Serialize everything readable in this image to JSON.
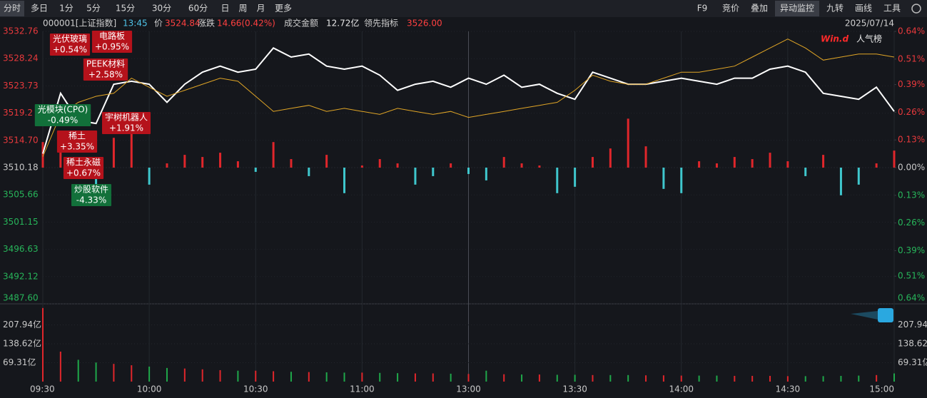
{
  "toolbar": {
    "left": [
      {
        "label": "分时",
        "active": true
      },
      {
        "label": "多日"
      },
      {
        "label": "1分"
      },
      {
        "label": "5分"
      },
      {
        "label": "15分"
      },
      {
        "label": "30分"
      },
      {
        "label": "60分"
      },
      {
        "label": "日"
      },
      {
        "label": "周"
      },
      {
        "label": "月"
      },
      {
        "label": "更多"
      }
    ],
    "right": [
      {
        "label": "F9"
      },
      {
        "label": "竞价"
      },
      {
        "label": "叠加"
      },
      {
        "label": "异动监控",
        "active": true
      },
      {
        "label": "九转"
      },
      {
        "label": "画线"
      },
      {
        "label": "工具"
      }
    ]
  },
  "header": {
    "code": "000001[上证指数]",
    "time": "13:45",
    "price": "3524.84",
    "change_label": "涨跌",
    "change": "14.66(0.42%)",
    "amount_label": "成交金额",
    "amount": "12.72亿",
    "lead": "3526.00",
    "date": "2025/07/14"
  },
  "chart_data": {
    "type": "line",
    "x": [
      0,
      5,
      10,
      15,
      20,
      25,
      30,
      35,
      40,
      45,
      50,
      55,
      60,
      65,
      70,
      75,
      80,
      85,
      90,
      95,
      100,
      105,
      110,
      115,
      120,
      125,
      130,
      135,
      140,
      145,
      150,
      155,
      160,
      165,
      170,
      175,
      180,
      185,
      190,
      195,
      200,
      205,
      210,
      215,
      220,
      225,
      230,
      235,
      240
    ],
    "xlim": [
      0,
      240
    ],
    "xticks": [
      {
        "value": 0,
        "label": "09:30"
      },
      {
        "value": 30,
        "label": "10:00"
      },
      {
        "value": 60,
        "label": "10:30"
      },
      {
        "value": 90,
        "label": "11:00"
      },
      {
        "value": 120,
        "label": "13:00"
      },
      {
        "value": 150,
        "label": "13:30"
      },
      {
        "value": 180,
        "label": "14:00"
      },
      {
        "value": 210,
        "label": "14:30"
      },
      {
        "value": 240,
        "label": "15:00"
      }
    ],
    "ylim": [
      3487.6,
      3532.76
    ],
    "yticks": [
      3532.76,
      3528.24,
      3523.73,
      3519.2,
      {
        "value": 3514.7,
        "label": "3514.70"
      },
      3510.18,
      3505.66,
      3501.15,
      3496.63,
      3492.12,
      {
        "value": 3487.6,
        "label": "3487.60"
      }
    ],
    "y2lim": [
      -0.64,
      0.64
    ],
    "y2ticks": [
      {
        "value": 0.64,
        "label": "0.64%"
      },
      {
        "value": 0.51,
        "label": "0.51%"
      },
      {
        "value": 0.39,
        "label": "0.39%"
      },
      {
        "value": 0.26,
        "label": "0.26%"
      },
      {
        "value": 0.13,
        "label": "0.13%"
      },
      {
        "value": 0,
        "label": "0.00%"
      },
      {
        "value": -0.13,
        "label": "0.13%"
      },
      {
        "value": -0.26,
        "label": "0.26%"
      },
      {
        "value": -0.39,
        "label": "0.39%"
      },
      {
        "value": -0.51,
        "label": "0.51%"
      },
      {
        "value": -0.64,
        "label": "0.64%"
      }
    ],
    "series": [
      {
        "name": "价",
        "color": "#ffffff",
        "values": [
          3512.5,
          3522.5,
          3518,
          3517.5,
          3524,
          3524.5,
          3524,
          3521,
          3524,
          3526,
          3527,
          3526,
          3526.5,
          3530,
          3528.5,
          3529,
          3527,
          3526.5,
          3527,
          3525.5,
          3523,
          3524,
          3524.5,
          3523.5,
          3525,
          3524,
          3525.5,
          3523.5,
          3524,
          3522.5,
          3521.5,
          3526,
          3525,
          3524,
          3524,
          3524.5,
          3525,
          3524.5,
          3524,
          3525,
          3525,
          3526.5,
          3527,
          3526,
          3522.5,
          3522,
          3521.5,
          3523.5,
          3519.5
        ]
      },
      {
        "name": "领先指标",
        "color": "#e0a526",
        "values": [
          3512,
          3519,
          3521,
          3522,
          3522.5,
          3525,
          3523.5,
          3522,
          3523,
          3524,
          3525,
          3524.5,
          3522,
          3519.5,
          3520,
          3520.5,
          3519.5,
          3520,
          3519.5,
          3519,
          3520,
          3519.5,
          3519,
          3519.5,
          3518.5,
          3519,
          3519.5,
          3520,
          3520.5,
          3521,
          3523,
          3525.5,
          3524.5,
          3524,
          3524,
          3525,
          3526,
          3526,
          3526.5,
          3527,
          3528.5,
          3530,
          3531.5,
          3530,
          3528,
          3528.5,
          3529,
          3529,
          3528.5
        ]
      }
    ],
    "bars": {
      "axis": "y2",
      "up_color": "#e0262b",
      "down_color": "#3fc7cd",
      "values": [
        0.12,
        0.08,
        -0.05,
        -0.18,
        0.14,
        0.18,
        -0.08,
        0.02,
        0.06,
        0.05,
        0.07,
        0.03,
        -0.02,
        0.12,
        0.04,
        -0.04,
        0.06,
        -0.12,
        0.01,
        0.04,
        0.02,
        -0.08,
        -0.04,
        0.02,
        -0.03,
        -0.06,
        0.05,
        0.02,
        0.01,
        -0.12,
        -0.09,
        0.05,
        0.09,
        0.23,
        0.1,
        -0.1,
        -0.12,
        0.03,
        0.02,
        0.05,
        0.04,
        0.07,
        0.03,
        -0.04,
        0.06,
        -0.13,
        -0.08,
        0.02,
        0.08
      ]
    },
    "volume": {
      "ylim": [
        0,
        280
      ],
      "yticks": [
        {
          "value": 207.94,
          "label": "207.94亿"
        },
        {
          "value": 138.62,
          "label": "138.62亿"
        },
        {
          "value": 69.31,
          "label": "69.31亿"
        }
      ],
      "up_color": "#e0262b",
      "down_color": "#1fa84a",
      "values": [
        270,
        110,
        80,
        70,
        65,
        60,
        55,
        50,
        48,
        45,
        42,
        40,
        40,
        38,
        36,
        35,
        34,
        33,
        33,
        32,
        31,
        30,
        30,
        29,
        28,
        40,
        27,
        26,
        26,
        25,
        25,
        24,
        24,
        24,
        23,
        23,
        22,
        22,
        22,
        21,
        21,
        21,
        20,
        20,
        20,
        21,
        22,
        24,
        30
      ]
    },
    "annotation_colors": {
      "up": "#b5121b",
      "down": "#12703a"
    },
    "annotations": [
      {
        "name": "光伏玻璃",
        "value": 0.54,
        "label": "+0.54%"
      },
      {
        "name": "电路板",
        "value": 0.95,
        "label": "+0.95%"
      },
      {
        "name": "PEEK材料",
        "value": 2.58,
        "label": "+2.58%"
      },
      {
        "name": "宇树机器人",
        "value": 1.91,
        "label": "+1.91%"
      },
      {
        "name": "光模块(CPO)",
        "value": -0.49,
        "label": "-0.49%"
      },
      {
        "name": "稀土",
        "value": 3.35,
        "label": "+3.35%"
      },
      {
        "name": "稀土永磁",
        "value": 0.67,
        "label": "+0.67%"
      },
      {
        "name": "炒股软件",
        "value": -4.33,
        "label": "-4.33%"
      }
    ],
    "badge": {
      "brand": "Win.d",
      "title": "人气榜"
    }
  }
}
